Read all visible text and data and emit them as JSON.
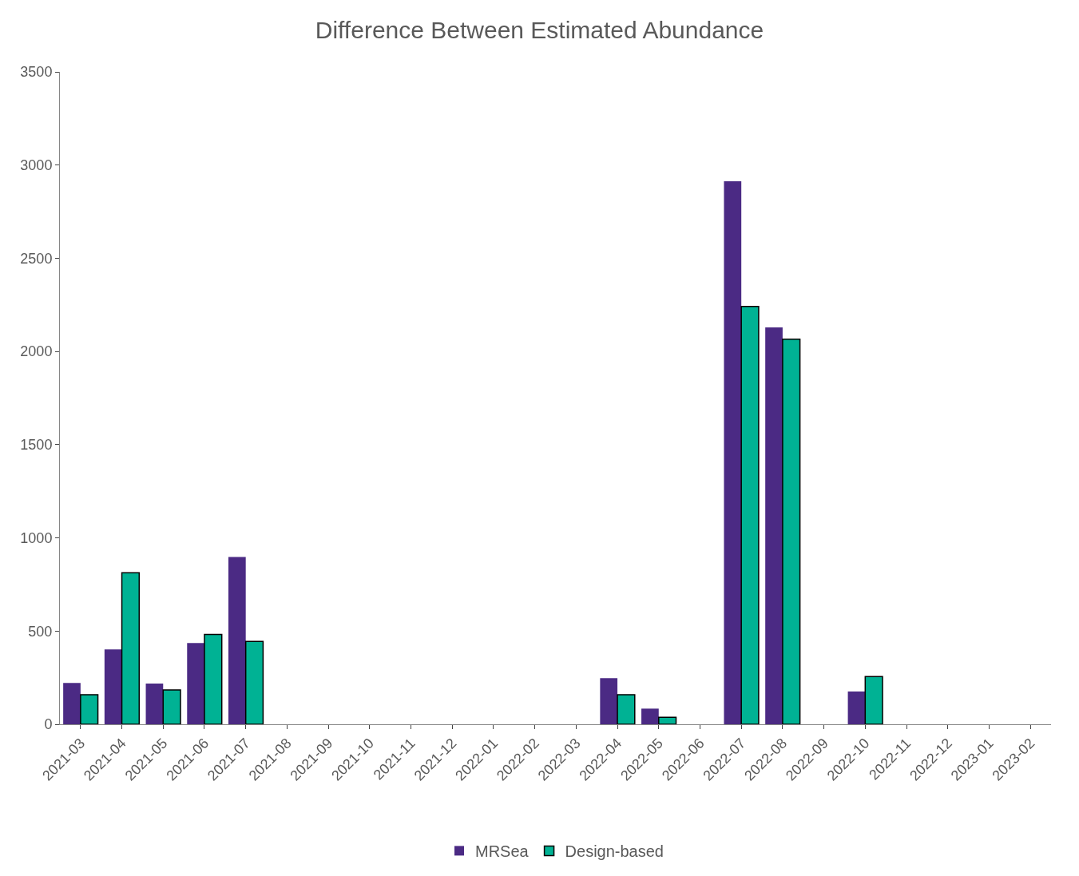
{
  "chart_data": {
    "type": "bar",
    "title": "Difference Between Estimated Abundance",
    "categories": [
      "2021-03",
      "2021-04",
      "2021-05",
      "2021-06",
      "2021-07",
      "2021-08",
      "2021-09",
      "2021-10",
      "2021-11",
      "2021-12",
      "2022-01",
      "2022-02",
      "2022-03",
      "2022-04",
      "2022-05",
      "2022-06",
      "2022-07",
      "2022-08",
      "2022-09",
      "2022-10",
      "2022-11",
      "2022-12",
      "2023-01",
      "2023-02"
    ],
    "series": [
      {
        "name": "MRSea",
        "color": "#4b2a84",
        "values": [
          222,
          402,
          218,
          436,
          897,
          null,
          null,
          null,
          null,
          null,
          null,
          null,
          null,
          247,
          84,
          null,
          2913,
          2129,
          null,
          176,
          null,
          null,
          null,
          null
        ]
      },
      {
        "name": "Design-based",
        "color": "#00b294",
        "values": [
          159,
          813,
          184,
          482,
          444,
          null,
          null,
          null,
          null,
          null,
          null,
          null,
          null,
          159,
          38,
          null,
          2242,
          2066,
          null,
          256,
          null,
          null,
          null,
          null
        ]
      }
    ],
    "ylim": [
      0,
      3500
    ],
    "yticks": [
      0,
      500,
      1000,
      1500,
      2000,
      2500,
      3000,
      3500
    ],
    "grid": false,
    "legend": "bottom"
  }
}
